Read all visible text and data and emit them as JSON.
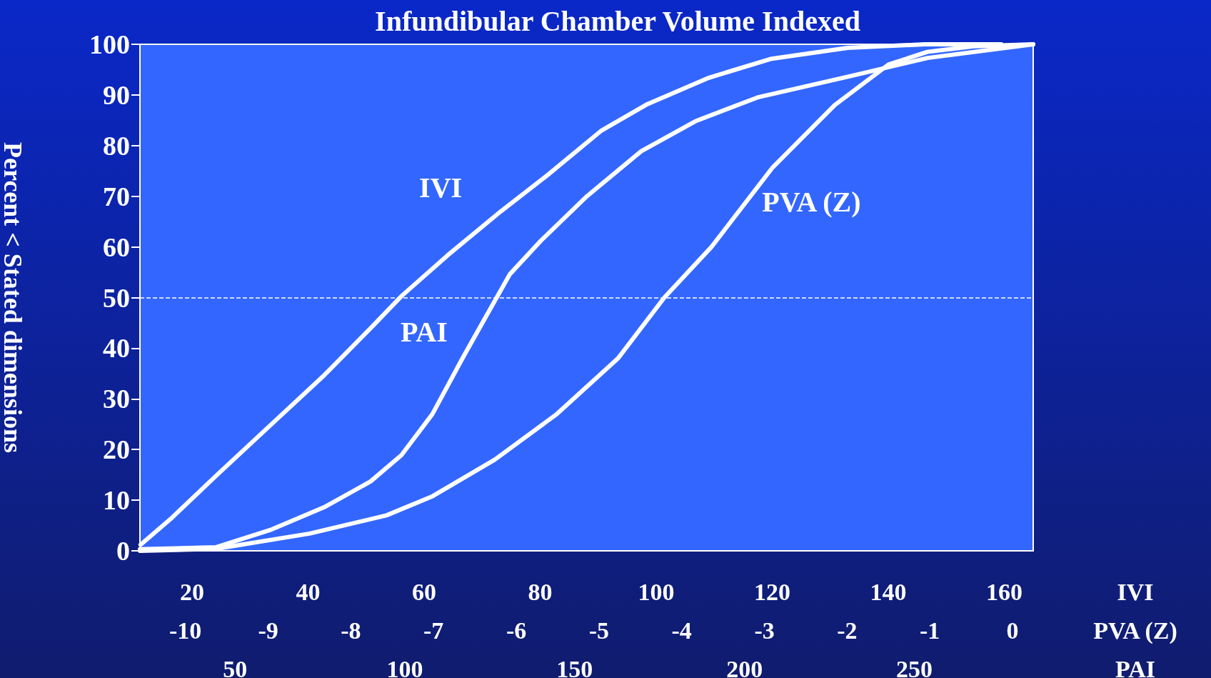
{
  "chart_data": [
    {
      "type": "line",
      "title": "Infundibular Chamber Volume Indexed",
      "ylabel": "Percent < Stated dimensions",
      "xlabel": "IVI",
      "x2label": "PVA (Z)",
      "xlim": [
        11,
        165
      ],
      "xticks": [
        20,
        40,
        60,
        80,
        100,
        120,
        140,
        160
      ],
      "x2lim": [
        -10.55,
        0.25
      ],
      "x2ticks": [
        -10,
        -9,
        -8,
        -7,
        -6,
        -5,
        -4,
        -3,
        -2,
        -1,
        0
      ],
      "ylim": [
        0,
        100
      ],
      "yticks": [
        0,
        10,
        20,
        30,
        40,
        50,
        60,
        70,
        80,
        90,
        100
      ],
      "series": [
        {
          "name": "IVI",
          "color": "#ffffff",
          "x": [
            11.1,
            16.3,
            24.2,
            33.5,
            42.8,
            50.8,
            56.1,
            64,
            73.3,
            81.3,
            90.6,
            98.5,
            109.1,
            119.7,
            133,
            146.3,
            159.5
          ],
          "values": [
            1.2,
            6.3,
            14.9,
            24.8,
            34.7,
            44,
            50.3,
            58.3,
            67.1,
            74.2,
            83,
            88.2,
            93.4,
            97.1,
            99.3,
            100,
            100
          ]
        },
        {
          "name": "PVA (Z)",
          "color": "#ffffff",
          "axis": "x2",
          "x": [
            -10.55,
            -9.63,
            -8.5,
            -7.57,
            -7.01,
            -6.26,
            -5.51,
            -4.77,
            -4.21,
            -3.64,
            -2.9,
            -2.15,
            -1.5,
            -1.03,
            -0.47,
            0.25
          ],
          "values": [
            0,
            0.4,
            3.4,
            7,
            10.8,
            18,
            27,
            38,
            50,
            60,
            75.7,
            88,
            96,
            98.5,
            99.6,
            100
          ]
        }
      ],
      "ref_lines": [
        {
          "axis": "y",
          "value": 50,
          "color": "#ffffff",
          "line_style": "dashed"
        }
      ],
      "line_style": "solid",
      "marker": "none",
      "grid": false,
      "legend": false
    },
    {
      "type": "line",
      "xlabel": "PAI",
      "xlim": [
        22,
        285
      ],
      "xticks": [
        50,
        100,
        150,
        200,
        250
      ],
      "ylim": [
        0,
        100
      ],
      "yticks": [
        0,
        10,
        20,
        30,
        40,
        50,
        60,
        70,
        80,
        90,
        100
      ],
      "tick_labels": "x",
      "series": [
        {
          "name": "PAI",
          "color": "#ffffff",
          "x": [
            22,
            44.3,
            60.3,
            76.2,
            89.9,
            99,
            108.1,
            117.2,
            124,
            130.9,
            140,
            153.6,
            169.6,
            185.5,
            203.8,
            231.1,
            253.9,
            285
          ],
          "values": [
            0.3,
            0.7,
            4.1,
            8.6,
            13.7,
            18.9,
            27,
            38.3,
            46.4,
            54.6,
            61.2,
            70,
            78.9,
            84.8,
            89.5,
            93.7,
            97.3,
            100
          ]
        }
      ],
      "line_style": "solid",
      "marker": "none",
      "grid": false,
      "legend": false
    }
  ]
}
